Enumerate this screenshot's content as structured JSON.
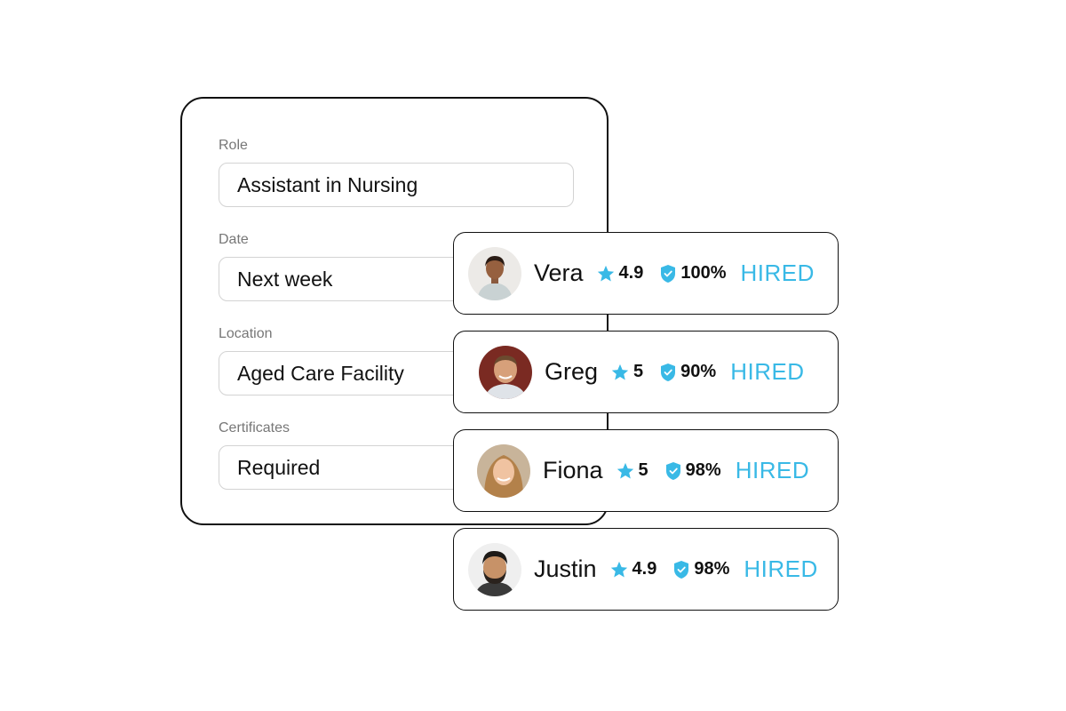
{
  "form": {
    "fields": [
      {
        "label": "Role",
        "value": "Assistant in Nursing"
      },
      {
        "label": "Date",
        "value": "Next week"
      },
      {
        "label": "Location",
        "value": "Aged Care Facility"
      },
      {
        "label": "Certificates",
        "value": "Required"
      }
    ]
  },
  "candidates": [
    {
      "name": "Vera",
      "rating": "4.9",
      "reliability": "100%",
      "status": "HIRED"
    },
    {
      "name": "Greg",
      "rating": "5",
      "reliability": "90%",
      "status": "HIRED"
    },
    {
      "name": "Fiona",
      "rating": "5",
      "reliability": "98%",
      "status": "HIRED"
    },
    {
      "name": "Justin",
      "rating": "4.9",
      "reliability": "98%",
      "status": "HIRED"
    }
  ],
  "icons": {
    "rating": "star-icon",
    "reliability": "shield-check-icon"
  },
  "colors": {
    "accent": "#39b9e6",
    "border": "#111111",
    "input_border": "#d3d3d3",
    "label": "#777777"
  }
}
